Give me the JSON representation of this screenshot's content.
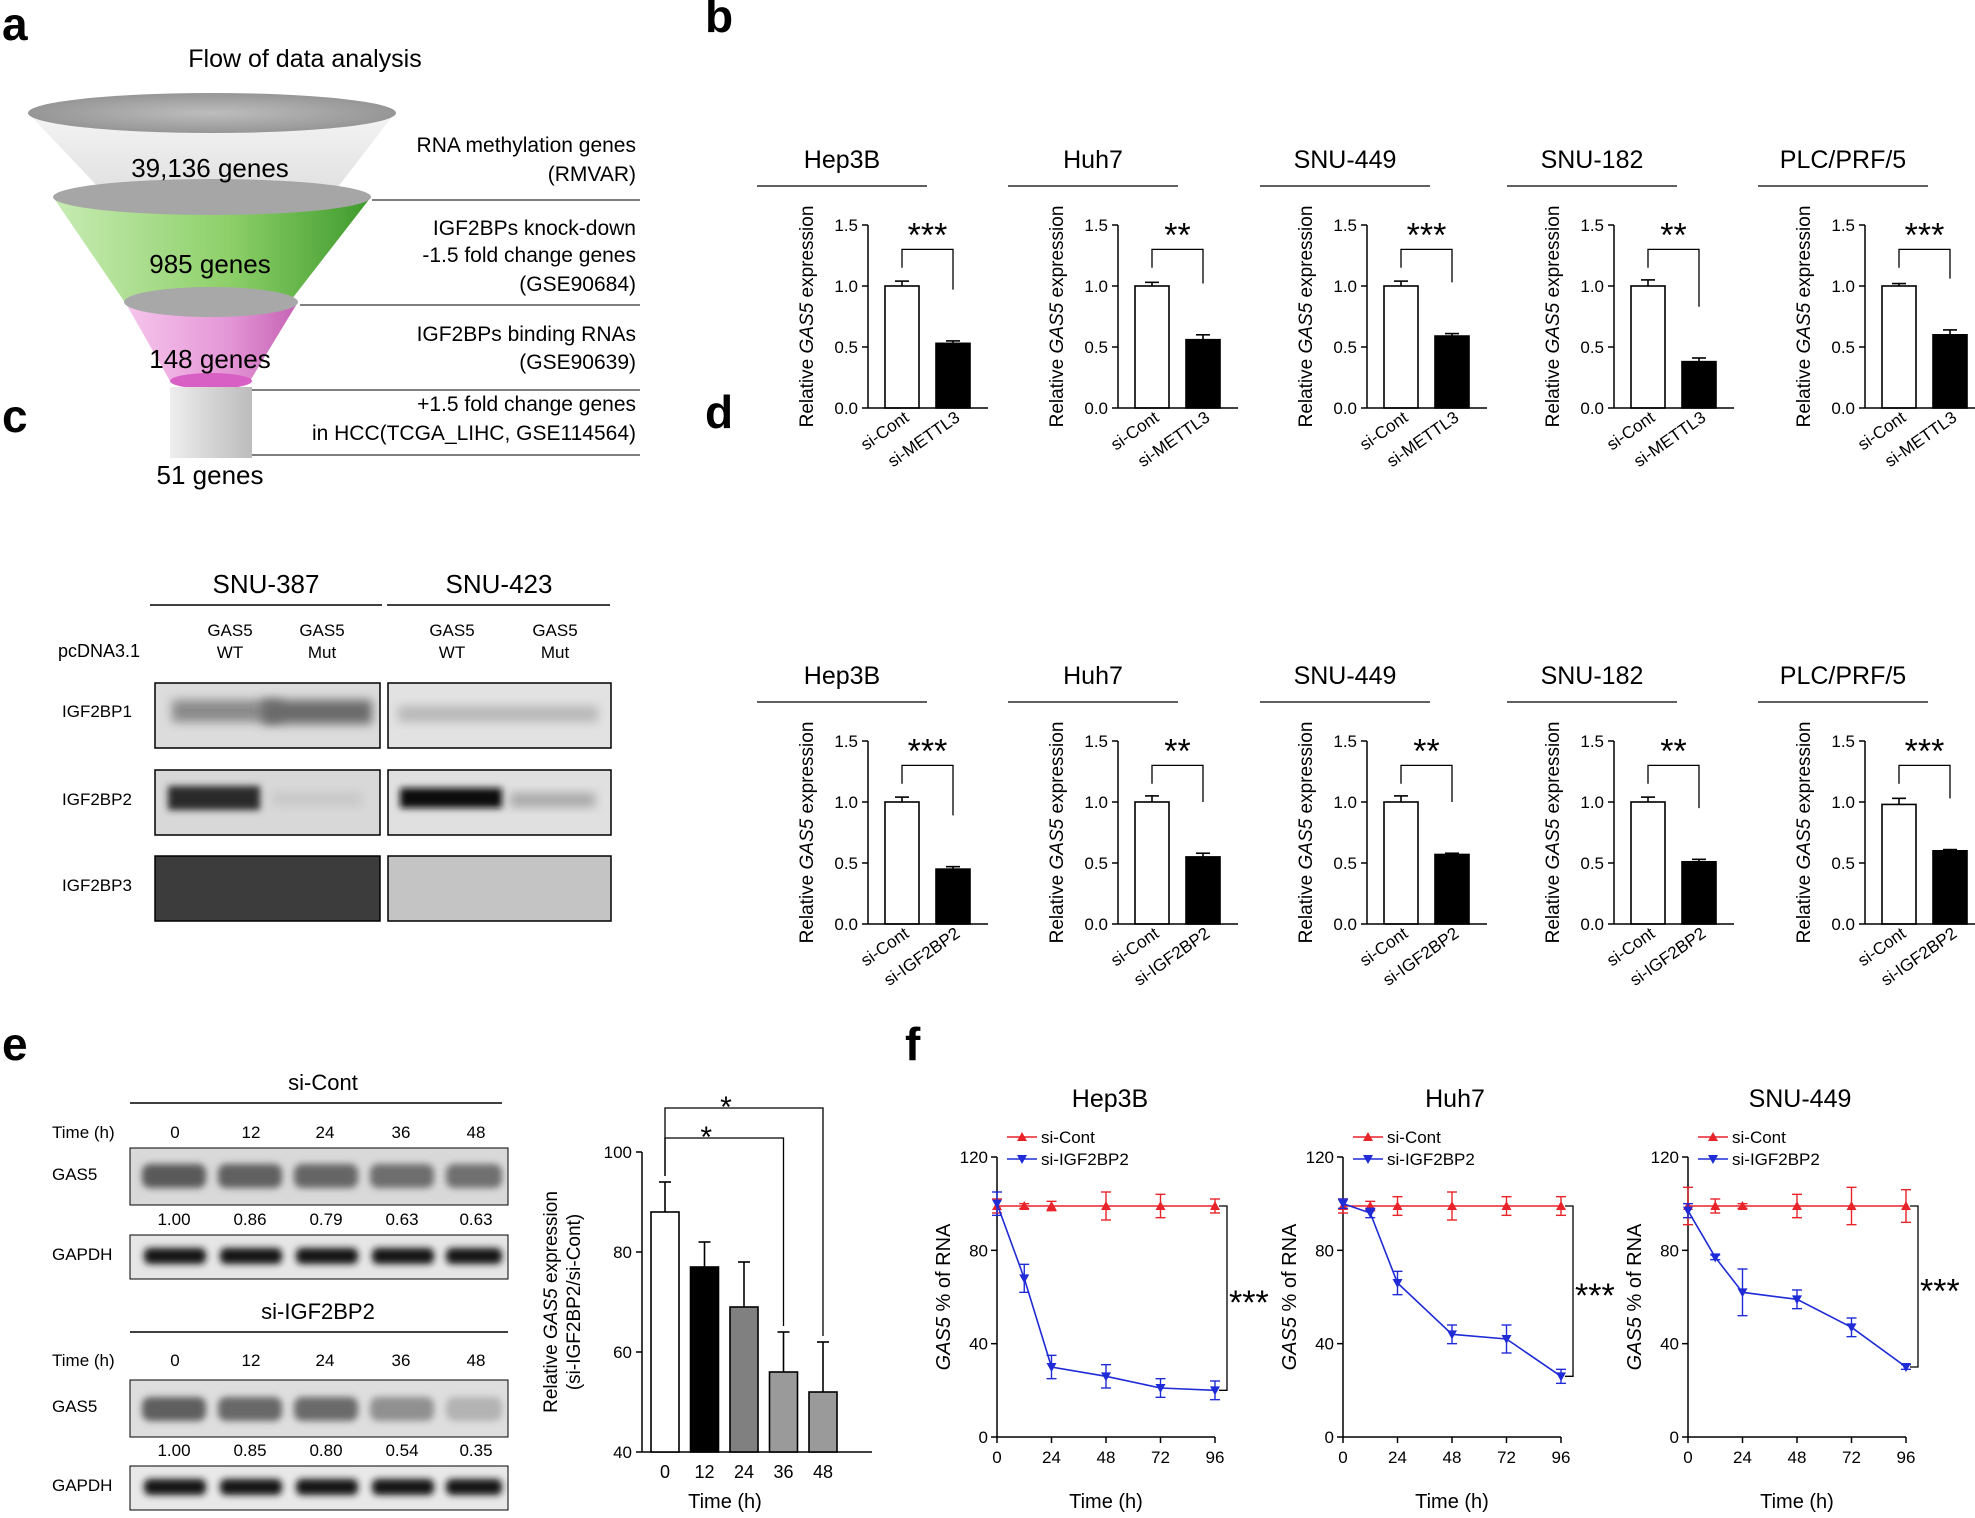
{
  "figure": {
    "panel_labels": [
      "a",
      "b",
      "c",
      "d",
      "e",
      "f"
    ],
    "colors": {
      "red": "#e8242a",
      "blue": "#1f2bd6",
      "black": "#000000",
      "gray": "#808080"
    }
  },
  "panel_a": {
    "title": "Flow of data analysis",
    "layers": [
      {
        "count": "39,136 genes",
        "desc": [
          "RNA methylation genes",
          "(RMVAR)"
        ]
      },
      {
        "count": "985 genes",
        "desc": [
          "IGF2BPs knock-down",
          "-1.5 fold change genes",
          "(GSE90684)"
        ]
      },
      {
        "count": "148 genes",
        "desc": [
          "IGF2BPs binding RNAs",
          "(GSE90639)"
        ]
      },
      {
        "count": "51 genes",
        "desc": [
          "+1.5 fold change genes",
          "in HCC(TCGA_LIHC, GSE114564)"
        ]
      }
    ]
  },
  "panel_c": {
    "cells": [
      "SNU-387",
      "SNU-423"
    ],
    "row_label": "pcDNA3.1",
    "lanes": [
      "GAS5\nWT",
      "GAS5\nMut",
      "GAS5\nWT",
      "GAS5\nMut"
    ],
    "blots": [
      "IGF2BP1",
      "IGF2BP2",
      "IGF2BP3"
    ]
  },
  "panel_e": {
    "time_label": "Time (h)",
    "times": [
      "0",
      "12",
      "24",
      "36",
      "48"
    ],
    "groups": [
      {
        "title": "si-Cont",
        "values": [
          "1.00",
          "0.86",
          "0.79",
          "0.63",
          "0.63"
        ]
      },
      {
        "title": "si-IGF2BP2",
        "values": [
          "1.00",
          "0.85",
          "0.80",
          "0.54",
          "0.35"
        ]
      }
    ],
    "blots": [
      "GAS5",
      "GAPDH"
    ]
  },
  "chart_data": [
    {
      "id": "b",
      "type": "bar",
      "ylabel": "Relative GAS5 expression",
      "ylim": [
        0,
        1.5
      ],
      "yticks": [
        "0.0",
        "0.5",
        "1.0",
        "1.5"
      ],
      "categories": [
        "si-Cont",
        "si-METTL3"
      ],
      "charts": [
        {
          "title": "Hep3B",
          "values": [
            1.0,
            0.53
          ],
          "errors": [
            0.04,
            0.02
          ],
          "sig": "***"
        },
        {
          "title": "Huh7",
          "values": [
            1.0,
            0.56
          ],
          "errors": [
            0.03,
            0.04
          ],
          "sig": "**"
        },
        {
          "title": "SNU-449",
          "values": [
            1.0,
            0.59
          ],
          "errors": [
            0.04,
            0.02
          ],
          "sig": "***"
        },
        {
          "title": "SNU-182",
          "values": [
            1.0,
            0.38
          ],
          "errors": [
            0.05,
            0.03
          ],
          "sig": "**"
        },
        {
          "title": "PLC/PRF/5",
          "values": [
            1.0,
            0.6
          ],
          "errors": [
            0.02,
            0.04
          ],
          "sig": "***"
        }
      ]
    },
    {
      "id": "d",
      "type": "bar",
      "ylabel": "Relative GAS5 expression",
      "ylim": [
        0,
        1.5
      ],
      "yticks": [
        "0.0",
        "0.5",
        "1.0",
        "1.5"
      ],
      "categories": [
        "si-Cont",
        "si-IGF2BP2"
      ],
      "charts": [
        {
          "title": "Hep3B",
          "values": [
            1.0,
            0.45
          ],
          "errors": [
            0.04,
            0.02
          ],
          "sig": "***"
        },
        {
          "title": "Huh7",
          "values": [
            1.0,
            0.55
          ],
          "errors": [
            0.05,
            0.03
          ],
          "sig": "**"
        },
        {
          "title": "SNU-449",
          "values": [
            1.0,
            0.57
          ],
          "errors": [
            0.05,
            0.01
          ],
          "sig": "**"
        },
        {
          "title": "SNU-182",
          "values": [
            1.0,
            0.51
          ],
          "errors": [
            0.04,
            0.02
          ],
          "sig": "**"
        },
        {
          "title": "PLC/PRF/5",
          "values": [
            0.98,
            0.6
          ],
          "errors": [
            0.05,
            0.01
          ],
          "sig": "***"
        }
      ]
    },
    {
      "id": "e",
      "type": "bar",
      "ylabel": "Relative GAS5 expression",
      "ylabel_line2": "(si-IGF2BP2/si-Cont)",
      "xlabel": "Time (h)",
      "ylim": [
        40,
        100
      ],
      "yticks": [
        "40",
        "60",
        "80",
        "100"
      ],
      "categories": [
        "0",
        "12",
        "24",
        "36",
        "48"
      ],
      "values": [
        88,
        77,
        69,
        56,
        52
      ],
      "errors": [
        6,
        5,
        9,
        8,
        10
      ],
      "bar_colors": [
        "#ffffff",
        "#000000",
        "#808080",
        "#9a9a9a",
        "#9a9a9a"
      ],
      "sig": [
        {
          "from": 0,
          "to": 3,
          "label": "*"
        },
        {
          "from": 0,
          "to": 4,
          "label": "*"
        }
      ]
    },
    {
      "id": "f",
      "type": "line",
      "ylabel": "GAS5 % of RNA",
      "xlabel": "Time (h)",
      "xlim": [
        0,
        96
      ],
      "ylim": [
        0,
        120
      ],
      "xticks": [
        "0",
        "24",
        "48",
        "72",
        "96"
      ],
      "yticks": [
        "0",
        "40",
        "80",
        "120"
      ],
      "x": [
        0,
        12,
        24,
        48,
        72,
        96
      ],
      "legend": [
        "si-Cont",
        "si-IGF2BP2"
      ],
      "charts": [
        {
          "title": "Hep3B",
          "sig": "***",
          "series": [
            {
              "name": "si-Cont",
              "values": [
                99,
                99,
                99,
                99,
                99,
                99
              ],
              "errors": [
                3,
                1,
                2,
                6,
                5,
                3
              ]
            },
            {
              "name": "si-IGF2BP2",
              "values": [
                100,
                68,
                30,
                26,
                21,
                20
              ],
              "errors": [
                5,
                6,
                5,
                5,
                4,
                4
              ]
            }
          ]
        },
        {
          "title": "Huh7",
          "sig": "***",
          "series": [
            {
              "name": "si-Cont",
              "values": [
                99,
                99,
                99,
                99,
                99,
                99
              ],
              "errors": [
                3,
                2,
                4,
                6,
                4,
                4
              ]
            },
            {
              "name": "si-IGF2BP2",
              "values": [
                100,
                96,
                66,
                44,
                42,
                26
              ],
              "errors": [
                2,
                2,
                5,
                4,
                6,
                3
              ]
            }
          ]
        },
        {
          "title": "SNU-449",
          "sig": "***",
          "series": [
            {
              "name": "si-Cont",
              "values": [
                99,
                99,
                99,
                99,
                99,
                99
              ],
              "errors": [
                8,
                3,
                1,
                5,
                8,
                7
              ]
            },
            {
              "name": "si-IGF2BP2",
              "values": [
                97,
                77,
                62,
                59,
                47,
                30
              ],
              "errors": [
                3,
                1,
                10,
                4,
                4,
                1
              ]
            }
          ]
        }
      ]
    }
  ]
}
